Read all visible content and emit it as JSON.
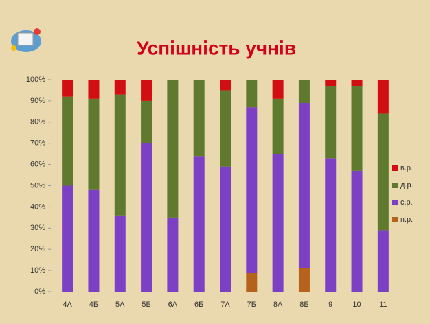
{
  "chart_data": {
    "type": "stacked_bar",
    "title": "Успішність учнів",
    "categories": [
      "4А",
      "4Б",
      "5А",
      "5Б",
      "6А",
      "6Б",
      "7А",
      "7Б",
      "8А",
      "8Б",
      "9",
      "10",
      "11"
    ],
    "series": [
      {
        "name": "п.р.",
        "color": "#b5621c",
        "values": [
          0,
          0,
          0,
          0,
          0,
          0,
          0,
          9,
          0,
          11,
          0,
          0,
          0
        ]
      },
      {
        "name": "с.р.",
        "color": "#7b40c4",
        "values": [
          50,
          48,
          36,
          70,
          35,
          64,
          59,
          78,
          65,
          78,
          63,
          57,
          29
        ]
      },
      {
        "name": "д.р.",
        "color": "#5f7a2f",
        "values": [
          42,
          43,
          57,
          20,
          65,
          36,
          36,
          13,
          26,
          11,
          34,
          40,
          55
        ]
      },
      {
        "name": "в.р.",
        "color": "#d10f12",
        "values": [
          8,
          9,
          7,
          10,
          0,
          0,
          5,
          0,
          9,
          0,
          3,
          3,
          16
        ]
      }
    ],
    "ylim": [
      0,
      100
    ],
    "yticks": [
      {
        "value": 0,
        "label": "0%"
      },
      {
        "value": 10,
        "label": "10%"
      },
      {
        "value": 20,
        "label": "20%"
      },
      {
        "value": 30,
        "label": "30%"
      },
      {
        "value": 40,
        "label": "40%"
      },
      {
        "value": 50,
        "label": "50%"
      },
      {
        "value": 60,
        "label": "60%"
      },
      {
        "value": 70,
        "label": "70%"
      },
      {
        "value": 80,
        "label": "80%"
      },
      {
        "value": 90,
        "label": "90%"
      },
      {
        "value": 100,
        "label": "100%"
      }
    ],
    "legend": "right"
  }
}
